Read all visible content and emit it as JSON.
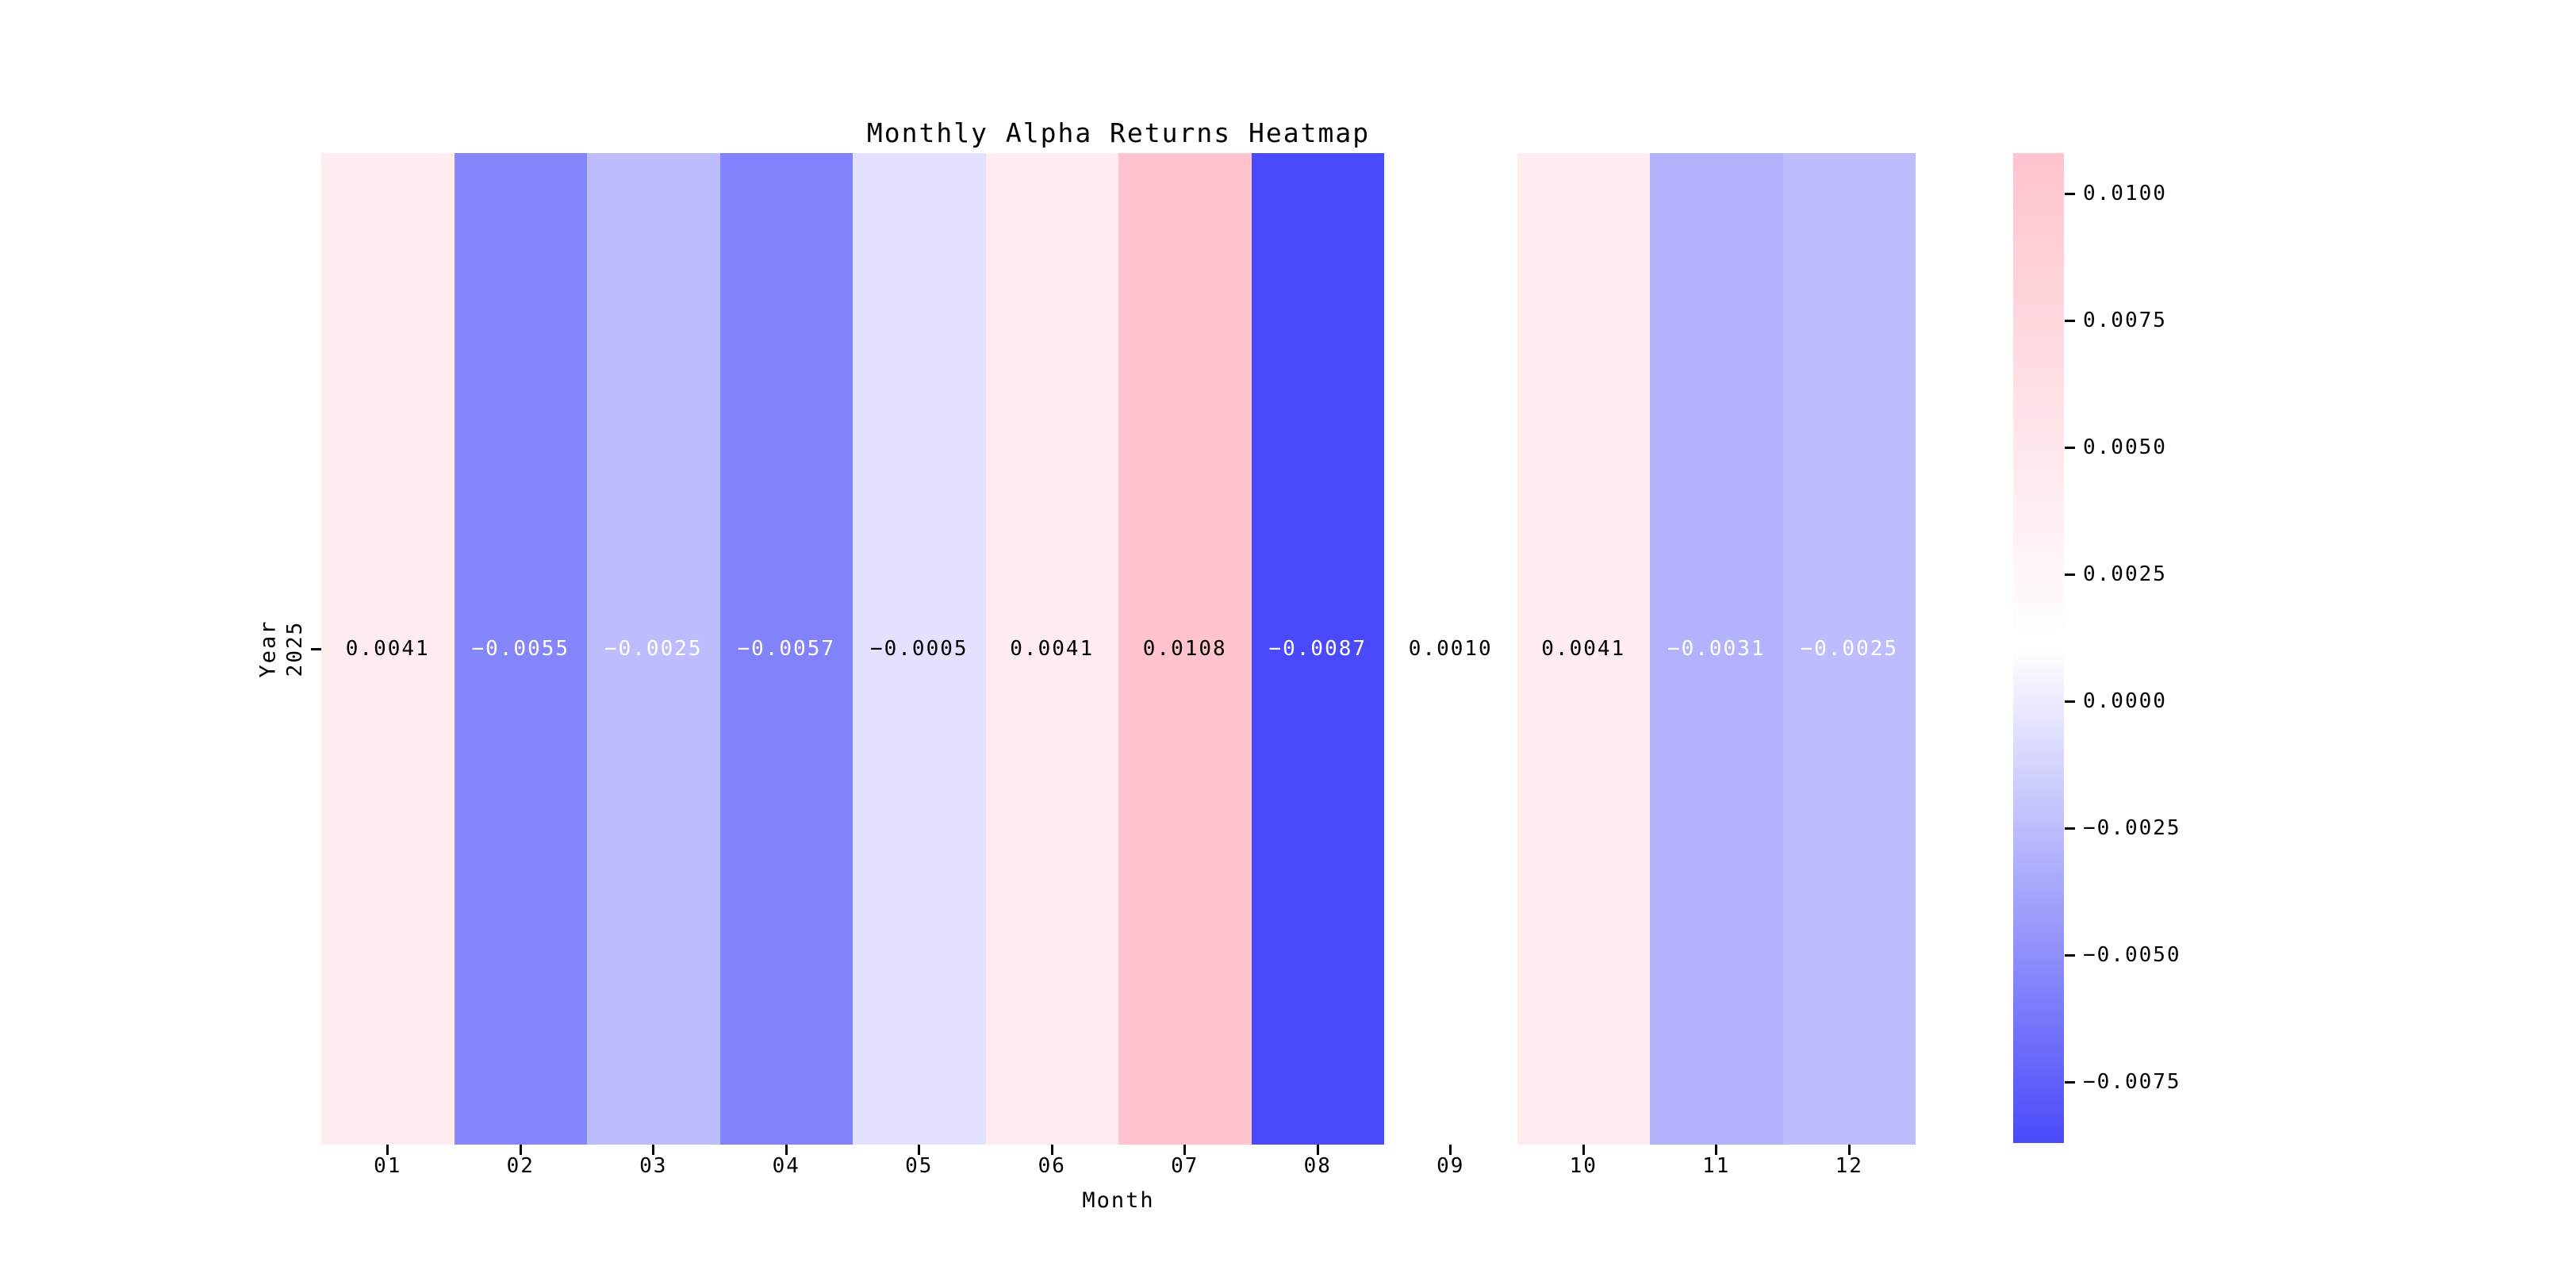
{
  "title": "Monthly Alpha Returns Heatmap",
  "chart_data": {
    "type": "heatmap",
    "title": "Monthly Alpha Returns Heatmap",
    "xlabel": "Month",
    "ylabel": "Year",
    "rows": [
      "2025"
    ],
    "columns": [
      "01",
      "02",
      "03",
      "04",
      "05",
      "06",
      "07",
      "08",
      "09",
      "10",
      "11",
      "12"
    ],
    "values": [
      [
        0.0041,
        -0.0055,
        -0.0025,
        -0.0057,
        -0.0005,
        0.0041,
        0.0108,
        -0.0087,
        0.001,
        0.0041,
        -0.0031,
        -0.0025
      ]
    ],
    "annotations": [
      [
        "0.0041",
        "−0.0055",
        "−0.0025",
        "−0.0057",
        "−0.0005",
        "0.0041",
        "0.0108",
        "−0.0087",
        "0.0010",
        "0.0041",
        "−0.0031",
        "−0.0025"
      ]
    ],
    "annotation_text_colors": [
      [
        "#000000",
        "#ffffff",
        "#ffffff",
        "#ffffff",
        "#000000",
        "#000000",
        "#000000",
        "#ffffff",
        "#000000",
        "#000000",
        "#ffffff",
        "#ffffff"
      ]
    ],
    "colorscale": {
      "vmin": -0.0087,
      "vmax": 0.0108,
      "min_color": "#4A4AFA",
      "mid_color": "#FFFFFF",
      "max_color": "#FFC3CD"
    },
    "colorbar": {
      "position": "right",
      "tick_labels": [
        "0.0100",
        "0.0075",
        "0.0050",
        "0.0025",
        "0.0000",
        "−0.0025",
        "−0.0050",
        "−0.0075"
      ],
      "tick_values": [
        0.01,
        0.0075,
        0.005,
        0.0025,
        0.0,
        -0.0025,
        -0.005,
        -0.0075
      ]
    },
    "grid": false,
    "legend_position": "right"
  }
}
